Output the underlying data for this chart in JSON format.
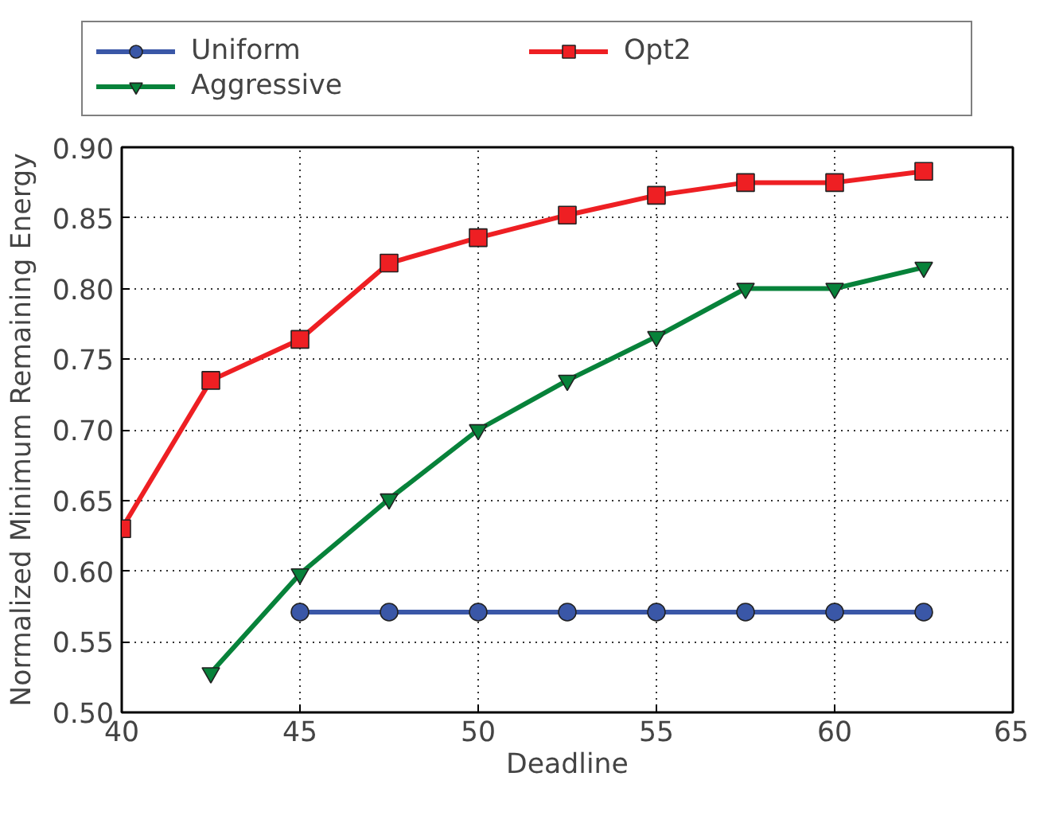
{
  "chart_data": {
    "type": "line",
    "xlabel": "Deadline",
    "ylabel": "Normalized Minimum Remaining Energy",
    "xlim": [
      40,
      65
    ],
    "xticks": [
      40,
      45,
      50,
      55,
      60,
      65
    ],
    "ylim": [
      0.5,
      0.9
    ],
    "yticks": [
      {
        "value": 0.5,
        "label": "0.50"
      },
      {
        "value": 0.55,
        "label": "0.55"
      },
      {
        "value": 0.6,
        "label": "0.60"
      },
      {
        "value": 0.65,
        "label": "0.65"
      },
      {
        "value": 0.7,
        "label": "0.70"
      },
      {
        "value": 0.75,
        "label": "0.75"
      },
      {
        "value": 0.8,
        "label": "0.80"
      },
      {
        "value": 0.85,
        "label": "0.85"
      },
      {
        "value": 0.9,
        "label": "0.90"
      }
    ],
    "grid": true,
    "legend": "top",
    "series": [
      {
        "name": "Uniform",
        "color": "#3a57a7",
        "marker": "circle",
        "x": [
          45,
          47.5,
          50,
          52.5,
          55,
          57.5,
          60,
          62.5
        ],
        "values": [
          0.571,
          0.571,
          0.571,
          0.571,
          0.571,
          0.571,
          0.571,
          0.571
        ]
      },
      {
        "name": "Aggressive",
        "color": "#07823a",
        "marker": "triangle",
        "x": [
          42.5,
          45,
          47.5,
          50,
          52.5,
          55,
          57.5,
          60,
          62.5
        ],
        "values": [
          0.528,
          0.598,
          0.651,
          0.7,
          0.735,
          0.766,
          0.8,
          0.8,
          0.815
        ]
      },
      {
        "name": "Opt2",
        "color": "#ee1f23",
        "marker": "square",
        "x": [
          40,
          42.5,
          45,
          47.5,
          50,
          52.5,
          55,
          57.5,
          60,
          62.5
        ],
        "values": [
          0.63,
          0.735,
          0.764,
          0.818,
          0.836,
          0.852,
          0.866,
          0.875,
          0.875,
          0.883
        ]
      }
    ]
  }
}
